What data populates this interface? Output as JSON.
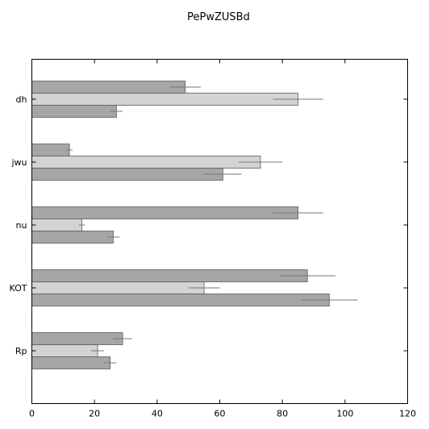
{
  "chart_data": {
    "type": "bar",
    "orientation": "horizontal",
    "title": "PePwZUSBd",
    "xlabel": "",
    "ylabel": "",
    "xlim": [
      0,
      120
    ],
    "xticks": [
      0,
      20,
      40,
      60,
      80,
      100,
      120
    ],
    "grid": false,
    "categories": [
      "dh",
      "jwu",
      "nu",
      "KOT",
      "Rp"
    ],
    "series": [
      {
        "color": "#a6a6a6",
        "values": [
          49,
          12,
          85,
          88,
          29
        ],
        "errors": [
          5,
          1,
          8,
          9,
          3
        ]
      },
      {
        "color": "#d3d3d3",
        "values": [
          85,
          73,
          16,
          55,
          21
        ],
        "errors": [
          8,
          7,
          1,
          5,
          2
        ]
      },
      {
        "color": "#a6a6a6",
        "values": [
          27,
          61,
          26,
          95,
          25
        ],
        "errors": [
          2,
          6,
          2,
          9,
          2
        ]
      }
    ]
  }
}
